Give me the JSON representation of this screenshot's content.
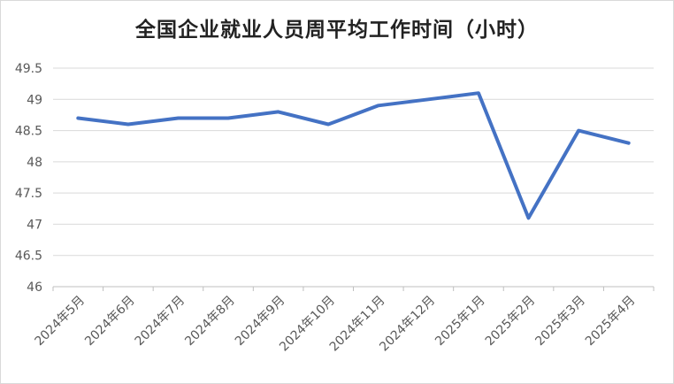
{
  "chart_data": {
    "type": "line",
    "title": "全国企业就业人员周平均工作时间（小时）",
    "xlabel": "",
    "ylabel": "",
    "categories": [
      "2024年5月",
      "2024年6月",
      "2024年7月",
      "2024年8月",
      "2024年9月",
      "2024年10月",
      "2024年11月",
      "2024年12月",
      "2025年1月",
      "2025年2月",
      "2025年3月",
      "2025年4月"
    ],
    "series": [
      {
        "values": [
          48.7,
          48.6,
          48.7,
          48.7,
          48.8,
          48.6,
          48.9,
          49.0,
          49.1,
          47.1,
          48.5,
          48.3
        ]
      }
    ],
    "ylim": [
      46,
      49.5
    ],
    "yticks": [
      46,
      46.5,
      47,
      47.5,
      48,
      48.5,
      49,
      49.5
    ],
    "grid": true,
    "legend": "none",
    "colors": {
      "line": "#4472C4",
      "grid": "#d9d9d9",
      "axis": "#bfbfbf"
    }
  }
}
